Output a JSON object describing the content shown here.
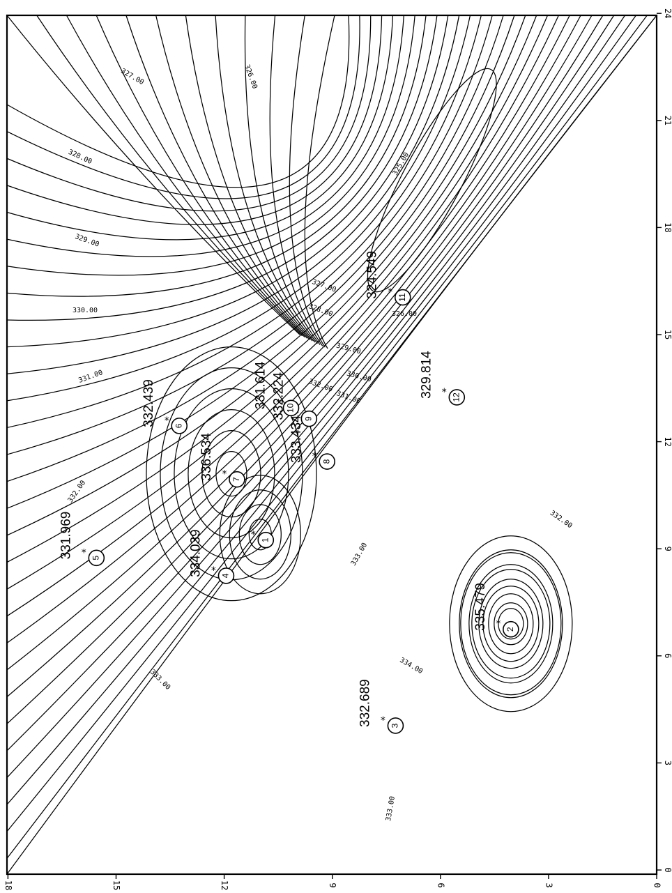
{
  "chart_data": {
    "type": "contour",
    "title": "",
    "xlabel": "",
    "ylabel": "",
    "xlim": [
      0,
      24
    ],
    "ylim": [
      0,
      18
    ],
    "x_ticks": [
      "0",
      "3",
      "6",
      "9",
      "12",
      "15",
      "18",
      "21",
      "24"
    ],
    "y_ticks": [
      "0",
      "3",
      "6",
      "9",
      "12",
      "15",
      "18"
    ],
    "contour_levels": [
      "325.00",
      "326.00",
      "327.00",
      "328.00",
      "329.00",
      "330.00",
      "331.00",
      "332.00",
      "333.00",
      "334.00"
    ],
    "wells": [
      {
        "id": "1",
        "label": "",
        "x": 9.4,
        "y": 11.0
      },
      {
        "id": "2",
        "label": "335.479",
        "x": 6.9,
        "y": 4.2
      },
      {
        "id": "3",
        "label": "332.689",
        "x": 4.2,
        "y": 7.4
      },
      {
        "id": "4",
        "label": "334.039",
        "x": 8.4,
        "y": 12.1
      },
      {
        "id": "5",
        "label": "331.969",
        "x": 8.9,
        "y": 15.7
      },
      {
        "id": "6",
        "label": "332.439",
        "x": 12.6,
        "y": 13.4
      },
      {
        "id": "7",
        "label": "336.534",
        "x": 11.1,
        "y": 11.8
      },
      {
        "id": "8",
        "label": "333.434",
        "x": 11.6,
        "y": 9.3
      },
      {
        "id": "9",
        "label": "332.224",
        "x": 12.8,
        "y": 9.8
      },
      {
        "id": "10",
        "label": "331.614",
        "x": 13.1,
        "y": 10.3
      },
      {
        "id": "11",
        "label": "324.549",
        "x": 16.2,
        "y": 7.2
      },
      {
        "id": "12",
        "label": "329.814",
        "x": 13.4,
        "y": 5.7
      }
    ]
  }
}
